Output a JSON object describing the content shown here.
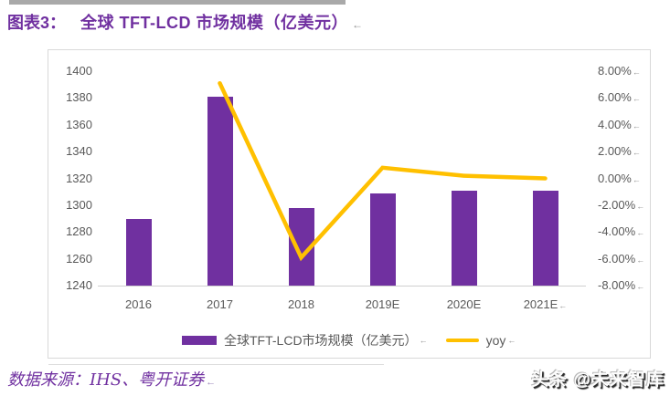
{
  "title": {
    "label": "图表3：",
    "text": "全球 TFT-LCD 市场规模（亿美元）",
    "mark": "←"
  },
  "source": {
    "text": "数据来源：IHS、粤开证券",
    "mark": "←"
  },
  "watermark": {
    "text": "头条 @未来智库"
  },
  "colors": {
    "bar": "#7030A0",
    "line": "#FFC000",
    "title": "#7030A0",
    "axis_text": "#595959",
    "frame_border": "#D9D9D9"
  },
  "chart_data": {
    "type": "bar",
    "title": "全球 TFT-LCD 市场规模（亿美元）",
    "categories": [
      "2016",
      "2017",
      "2018",
      "2019E",
      "2020E",
      "2021E"
    ],
    "series": [
      {
        "name": "全球TFT-LCD市场规模（亿美元）",
        "type": "bar",
        "axis": "left",
        "values": [
          1290,
          1381,
          1298,
          1309,
          1311,
          1311
        ]
      },
      {
        "name": "yoy",
        "type": "line",
        "axis": "right",
        "values": [
          null,
          7.1,
          -5.9,
          0.8,
          0.2,
          0.0
        ]
      }
    ],
    "left_axis": {
      "min": 1240,
      "max": 1400,
      "step": 20,
      "tick_labels": [
        "1400",
        "1380",
        "1360",
        "1340",
        "1320",
        "1300",
        "1280",
        "1260",
        "1240"
      ]
    },
    "right_axis": {
      "min": -8,
      "max": 8,
      "step": 2,
      "tick_labels": [
        "8.00%",
        "6.00%",
        "4.00%",
        "2.00%",
        "0.00%",
        "-2.00%",
        "-4.00%",
        "-6.00%",
        "-8.00%"
      ],
      "tick_mark": "←"
    },
    "x_last_mark": "←",
    "grid": false,
    "legend_position": "bottom",
    "legend": [
      {
        "label": "全球TFT-LCD市场规模（亿美元）",
        "mark": "←"
      },
      {
        "label": "yoy",
        "mark": "←"
      }
    ]
  }
}
